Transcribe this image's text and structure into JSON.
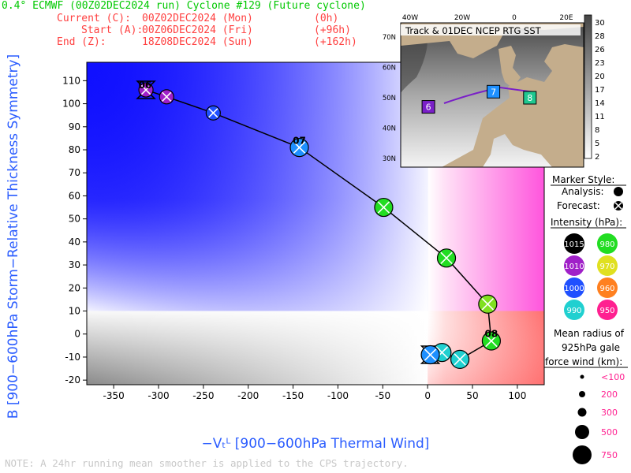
{
  "header": {
    "title": "0.4° ECMWF (00Z02DEC2024 run) Cyclone #129 (Future cyclone)",
    "current_label": "Current (C):",
    "current_date": "00Z02DEC2024 (Mon)",
    "current_offset": "(0h)",
    "start_label": "Start (A):",
    "start_date": "00Z06DEC2024 (Fri)",
    "start_offset": "(+96h)",
    "end_label": "End (Z):",
    "end_date": "18Z08DEC2024 (Sun)",
    "end_offset": "(+162h)"
  },
  "note": "NOTE: A 24hr running mean smoother is applied to the CPS trajectory.",
  "inset": {
    "title": "Track & 01DEC NCEP RTG SST",
    "lon_labels": [
      "40W",
      "20W",
      "0",
      "20E"
    ],
    "lat_labels": [
      "70N",
      "60N",
      "50N",
      "40N",
      "30N"
    ],
    "markers": [
      {
        "label": "6",
        "lon": -33,
        "lat": 47,
        "color": "#7a1fc8"
      },
      {
        "label": "7",
        "lon": -8,
        "lat": 52,
        "color": "#1e90ff"
      },
      {
        "label": "8",
        "lon": 6,
        "lat": 50,
        "color": "#20c890"
      }
    ],
    "colorbar": {
      "values": [
        "30",
        "28",
        "26",
        "23",
        "20",
        "17",
        "14",
        "11",
        "8",
        "5",
        "2"
      ]
    }
  },
  "legend": {
    "marker_style_title": "Marker Style:",
    "analysis_label": "Analysis:",
    "forecast_label": "Forecast:",
    "intensity_title": "Intensity (hPa):",
    "intensity": [
      {
        "label": "1015",
        "color": "#000000",
        "text_color": "#ffffff"
      },
      {
        "label": "980",
        "color": "#22dd22",
        "text_color": "#ffffff"
      },
      {
        "label": "1010",
        "color": "#a020c8",
        "text_color": "#ffffff"
      },
      {
        "label": "970",
        "color": "#e0e020",
        "text_color": "#ffffff"
      },
      {
        "label": "1000",
        "color": "#2050ff",
        "text_color": "#ffffff"
      },
      {
        "label": "960",
        "color": "#ff8020",
        "text_color": "#ffffff"
      },
      {
        "label": "990",
        "color": "#20d0d0",
        "text_color": "#ffffff"
      },
      {
        "label": "950",
        "color": "#ff2090",
        "text_color": "#ffffff"
      }
    ],
    "radius_title": [
      "Mean radius of",
      "925hPa gale",
      "force wind (km):"
    ],
    "radius_labels": [
      "<100",
      "200",
      "300",
      "500",
      "750"
    ]
  },
  "chart_data": {
    "type": "scatter",
    "xlabel": "−Vₜᴸ [900−600hPa Thermal Wind]",
    "ylabel": "B [900−600hPa Storm−Relative Thickness Symmetry]",
    "xlim": [
      -380,
      130
    ],
    "ylim": [
      -22,
      118
    ],
    "x_ticks": [
      -350,
      -300,
      -250,
      -200,
      -150,
      -100,
      -50,
      0,
      50,
      100
    ],
    "y_ticks": [
      -20,
      -10,
      0,
      10,
      20,
      30,
      40,
      50,
      60,
      70,
      80,
      90,
      100,
      110
    ],
    "date_labels": [
      {
        "text": "06",
        "x": -315,
        "y": 108
      },
      {
        "text": "07",
        "x": -143,
        "y": 84
      },
      {
        "text": "08",
        "x": 71,
        "y": 0
      }
    ],
    "points": [
      {
        "x": -314,
        "y": 106,
        "color": "#a020c8",
        "size": "small"
      },
      {
        "x": -291,
        "y": 103,
        "color": "#a020c8",
        "size": "small"
      },
      {
        "x": -239,
        "y": 96,
        "color": "#2050ff",
        "size": "small"
      },
      {
        "x": -143,
        "y": 81,
        "color": "#1e90ff",
        "size": "medium"
      },
      {
        "x": -49,
        "y": 55,
        "color": "#22dd22",
        "size": "medium"
      },
      {
        "x": 21,
        "y": 33,
        "color": "#22dd22",
        "size": "medium"
      },
      {
        "x": 67,
        "y": 13,
        "color": "#80e020",
        "size": "medium"
      },
      {
        "x": 71,
        "y": -3,
        "color": "#22dd22",
        "size": "medium"
      },
      {
        "x": 36,
        "y": -11,
        "color": "#20d0d0",
        "size": "medium"
      },
      {
        "x": 16,
        "y": -8,
        "color": "#20d0d0",
        "size": "medium"
      },
      {
        "x": 3,
        "y": -9,
        "color": "#1e90ff",
        "size": "medium"
      }
    ]
  }
}
